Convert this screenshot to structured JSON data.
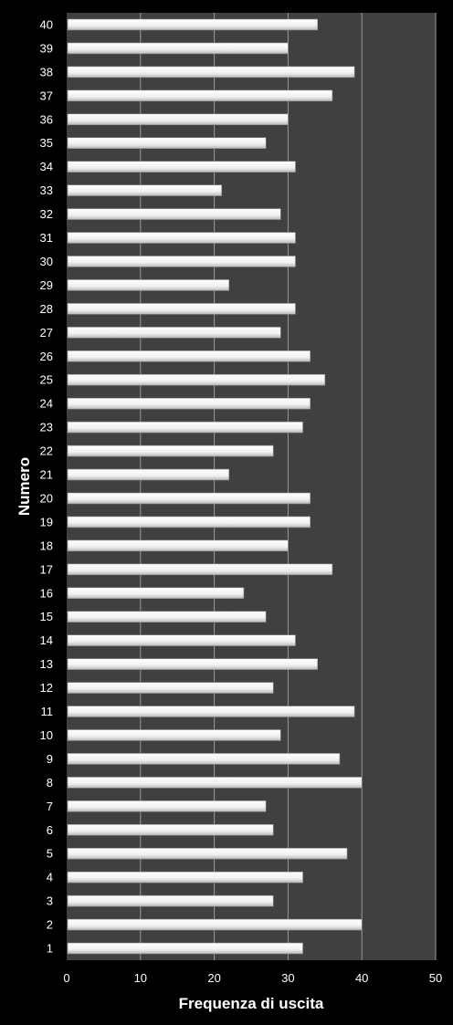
{
  "chart_data": {
    "type": "bar",
    "orientation": "horizontal",
    "xlabel": "Frequenza di uscita",
    "ylabel": "Numero",
    "xlim": [
      0,
      50
    ],
    "xticks": [
      0,
      10,
      20,
      30,
      40,
      50
    ],
    "grid": true,
    "colors": {
      "background": "#000000",
      "plot_area": "#404040",
      "bar": "#f2f2f2",
      "gridline": "#9a9a9a",
      "text": "#ffffff"
    },
    "categories": [
      "1",
      "2",
      "3",
      "4",
      "5",
      "6",
      "7",
      "8",
      "9",
      "10",
      "11",
      "12",
      "13",
      "14",
      "15",
      "16",
      "17",
      "18",
      "19",
      "20",
      "21",
      "22",
      "23",
      "24",
      "25",
      "26",
      "27",
      "28",
      "29",
      "30",
      "31",
      "32",
      "33",
      "34",
      "35",
      "36",
      "37",
      "38",
      "39",
      "40"
    ],
    "values": [
      32,
      40,
      28,
      32,
      38,
      28,
      27,
      40,
      37,
      29,
      39,
      28,
      34,
      31,
      27,
      24,
      36,
      30,
      33,
      33,
      22,
      28,
      32,
      33,
      35,
      33,
      29,
      31,
      22,
      31,
      31,
      29,
      21,
      31,
      27,
      30,
      36,
      39,
      30,
      34
    ]
  }
}
